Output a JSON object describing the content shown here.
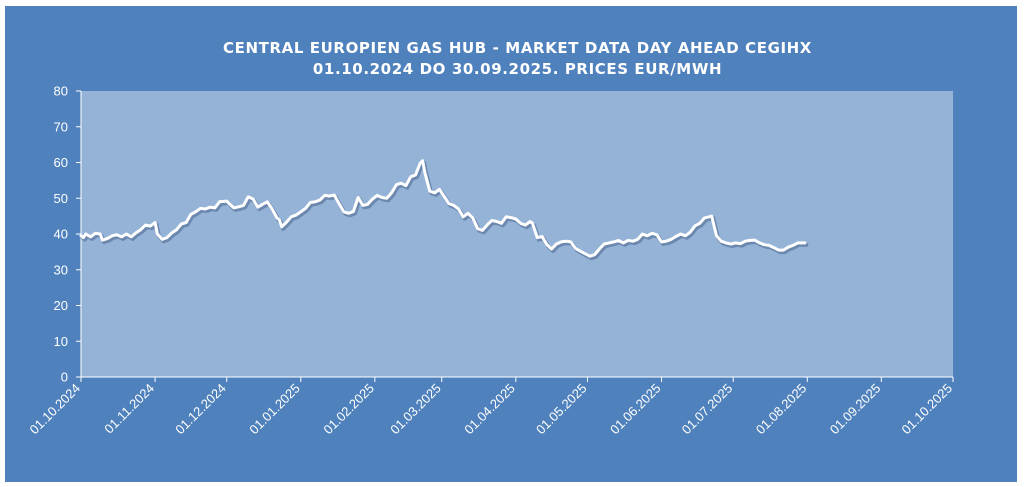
{
  "chart_data": {
    "type": "line",
    "title_lines": [
      "CENTRAL EUROPIEN GAS HUB - MARKET DATA DAY AHEAD CEGIHX",
      "01.10.2024 DO 30.09.2025. PRICES EUR/MWH"
    ],
    "xlabel": "",
    "ylabel": "",
    "ylim": [
      0,
      80
    ],
    "y_ticks": [
      0,
      10,
      20,
      30,
      40,
      50,
      60,
      70,
      80
    ],
    "x_range": [
      "2024-10-01",
      "2025-10-01"
    ],
    "x_ticks": [
      {
        "date": "2024-10-01",
        "label": "01.10.2024"
      },
      {
        "date": "2024-11-01",
        "label": "01.11.2024"
      },
      {
        "date": "2024-12-01",
        "label": "01.12.2024"
      },
      {
        "date": "2025-01-01",
        "label": "01.01.2025"
      },
      {
        "date": "2025-02-01",
        "label": "01.02.2025"
      },
      {
        "date": "2025-03-01",
        "label": "01.03.2025"
      },
      {
        "date": "2025-04-01",
        "label": "01.04.2025"
      },
      {
        "date": "2025-05-01",
        "label": "01.05.2025"
      },
      {
        "date": "2025-06-01",
        "label": "01.06.2025"
      },
      {
        "date": "2025-07-01",
        "label": "01.07.2025"
      },
      {
        "date": "2025-08-01",
        "label": "01.08.2025"
      },
      {
        "date": "2025-09-01",
        "label": "01.09.2025"
      },
      {
        "date": "2025-10-01",
        "label": "01.10.2025"
      }
    ],
    "grid": false,
    "legend": "none",
    "series": [
      {
        "color": "#ffffff",
        "points": [
          [
            "2024-10-01",
            39.5
          ],
          [
            "2024-10-02",
            39.0
          ],
          [
            "2024-10-03",
            40.0
          ],
          [
            "2024-10-05",
            39.2
          ],
          [
            "2024-10-07",
            40.2
          ],
          [
            "2024-10-09",
            40.0
          ],
          [
            "2024-10-10",
            38.3
          ],
          [
            "2024-10-12",
            38.7
          ],
          [
            "2024-10-14",
            39.5
          ],
          [
            "2024-10-16",
            39.8
          ],
          [
            "2024-10-18",
            39.2
          ],
          [
            "2024-10-20",
            40.0
          ],
          [
            "2024-10-22",
            39.2
          ],
          [
            "2024-10-24",
            40.3
          ],
          [
            "2024-10-26",
            41.2
          ],
          [
            "2024-10-28",
            42.5
          ],
          [
            "2024-10-30",
            42.2
          ],
          [
            "2024-11-01",
            43.2
          ],
          [
            "2024-11-02",
            40.0
          ],
          [
            "2024-11-04",
            38.5
          ],
          [
            "2024-11-06",
            39.0
          ],
          [
            "2024-11-08",
            40.3
          ],
          [
            "2024-11-10",
            41.2
          ],
          [
            "2024-11-12",
            42.8
          ],
          [
            "2024-11-14",
            43.2
          ],
          [
            "2024-11-16",
            45.5
          ],
          [
            "2024-11-18",
            46.2
          ],
          [
            "2024-11-20",
            47.2
          ],
          [
            "2024-11-22",
            47.0
          ],
          [
            "2024-11-24",
            47.5
          ],
          [
            "2024-11-26",
            47.3
          ],
          [
            "2024-11-28",
            49.0
          ],
          [
            "2024-12-01",
            49.2
          ],
          [
            "2024-12-02",
            48.5
          ],
          [
            "2024-12-04",
            47.3
          ],
          [
            "2024-12-06",
            47.6
          ],
          [
            "2024-12-08",
            48.0
          ],
          [
            "2024-12-10",
            50.4
          ],
          [
            "2024-12-12",
            49.8
          ],
          [
            "2024-12-14",
            47.5
          ],
          [
            "2024-12-16",
            48.3
          ],
          [
            "2024-12-18",
            49.0
          ],
          [
            "2024-12-20",
            47.0
          ],
          [
            "2024-12-22",
            44.5
          ],
          [
            "2024-12-23",
            44.0
          ],
          [
            "2024-12-24",
            42.0
          ],
          [
            "2024-12-26",
            43.3
          ],
          [
            "2024-12-28",
            44.8
          ],
          [
            "2024-12-30",
            45.3
          ],
          [
            "2025-01-01",
            46.2
          ],
          [
            "2025-01-03",
            47.2
          ],
          [
            "2025-01-05",
            48.8
          ],
          [
            "2025-01-07",
            49.0
          ],
          [
            "2025-01-09",
            49.5
          ],
          [
            "2025-01-11",
            50.8
          ],
          [
            "2025-01-13",
            50.6
          ],
          [
            "2025-01-15",
            50.9
          ],
          [
            "2025-01-17",
            48.5
          ],
          [
            "2025-01-19",
            46.2
          ],
          [
            "2025-01-21",
            45.8
          ],
          [
            "2025-01-23",
            46.3
          ],
          [
            "2025-01-25",
            50.2
          ],
          [
            "2025-01-27",
            48.0
          ],
          [
            "2025-01-29",
            48.3
          ],
          [
            "2025-01-31",
            49.8
          ],
          [
            "2025-02-02",
            50.8
          ],
          [
            "2025-02-04",
            50.2
          ],
          [
            "2025-02-06",
            50.0
          ],
          [
            "2025-02-08",
            51.5
          ],
          [
            "2025-02-10",
            53.8
          ],
          [
            "2025-02-12",
            54.2
          ],
          [
            "2025-02-14",
            53.5
          ],
          [
            "2025-02-16",
            56.0
          ],
          [
            "2025-02-18",
            56.5
          ],
          [
            "2025-02-20",
            59.8
          ],
          [
            "2025-02-21",
            60.5
          ],
          [
            "2025-02-22",
            57.0
          ],
          [
            "2025-02-24",
            52.0
          ],
          [
            "2025-02-26",
            51.5
          ],
          [
            "2025-02-28",
            52.5
          ],
          [
            "2025-03-02",
            50.5
          ],
          [
            "2025-03-04",
            48.5
          ],
          [
            "2025-03-06",
            48.0
          ],
          [
            "2025-03-08",
            47.0
          ],
          [
            "2025-03-10",
            44.8
          ],
          [
            "2025-03-12",
            45.8
          ],
          [
            "2025-03-14",
            44.5
          ],
          [
            "2025-03-16",
            41.5
          ],
          [
            "2025-03-18",
            41.0
          ],
          [
            "2025-03-20",
            42.5
          ],
          [
            "2025-03-22",
            43.8
          ],
          [
            "2025-03-24",
            43.5
          ],
          [
            "2025-03-26",
            43.0
          ],
          [
            "2025-03-28",
            44.8
          ],
          [
            "2025-03-30",
            44.6
          ],
          [
            "2025-04-01",
            44.2
          ],
          [
            "2025-04-03",
            43.0
          ],
          [
            "2025-04-05",
            42.5
          ],
          [
            "2025-04-07",
            43.5
          ],
          [
            "2025-04-08",
            43.0
          ],
          [
            "2025-04-10",
            39.0
          ],
          [
            "2025-04-12",
            39.3
          ],
          [
            "2025-04-14",
            37.0
          ],
          [
            "2025-04-16",
            35.8
          ],
          [
            "2025-04-18",
            37.2
          ],
          [
            "2025-04-20",
            37.8
          ],
          [
            "2025-04-22",
            38.0
          ],
          [
            "2025-04-24",
            37.8
          ],
          [
            "2025-04-26",
            36.0
          ],
          [
            "2025-04-28",
            35.2
          ],
          [
            "2025-04-30",
            34.5
          ],
          [
            "2025-05-02",
            33.8
          ],
          [
            "2025-05-04",
            34.2
          ],
          [
            "2025-05-06",
            35.8
          ],
          [
            "2025-05-08",
            37.2
          ],
          [
            "2025-05-10",
            37.5
          ],
          [
            "2025-05-12",
            37.8
          ],
          [
            "2025-05-14",
            38.2
          ],
          [
            "2025-05-16",
            37.5
          ],
          [
            "2025-05-18",
            38.2
          ],
          [
            "2025-05-20",
            38.0
          ],
          [
            "2025-05-22",
            38.5
          ],
          [
            "2025-05-24",
            40.0
          ],
          [
            "2025-05-26",
            39.5
          ],
          [
            "2025-05-28",
            40.2
          ],
          [
            "2025-05-30",
            39.8
          ],
          [
            "2025-06-01",
            37.8
          ],
          [
            "2025-06-03",
            38.0
          ],
          [
            "2025-06-05",
            38.5
          ],
          [
            "2025-06-07",
            39.3
          ],
          [
            "2025-06-09",
            40.0
          ],
          [
            "2025-06-11",
            39.5
          ],
          [
            "2025-06-13",
            40.5
          ],
          [
            "2025-06-15",
            42.3
          ],
          [
            "2025-06-17",
            43.0
          ],
          [
            "2025-06-19",
            44.5
          ],
          [
            "2025-06-21",
            44.8
          ],
          [
            "2025-06-22",
            45.0
          ],
          [
            "2025-06-24",
            39.5
          ],
          [
            "2025-06-26",
            38.0
          ],
          [
            "2025-06-28",
            37.5
          ],
          [
            "2025-06-30",
            37.2
          ],
          [
            "2025-07-02",
            37.5
          ],
          [
            "2025-07-04",
            37.3
          ],
          [
            "2025-07-06",
            38.0
          ],
          [
            "2025-07-08",
            38.2
          ],
          [
            "2025-07-10",
            38.3
          ],
          [
            "2025-07-12",
            37.5
          ],
          [
            "2025-07-14",
            37.0
          ],
          [
            "2025-07-16",
            36.8
          ],
          [
            "2025-07-18",
            36.2
          ],
          [
            "2025-07-20",
            35.5
          ],
          [
            "2025-07-22",
            35.5
          ],
          [
            "2025-07-24",
            36.3
          ],
          [
            "2025-07-26",
            36.8
          ],
          [
            "2025-07-28",
            37.5
          ],
          [
            "2025-07-31",
            37.5
          ]
        ]
      }
    ]
  }
}
